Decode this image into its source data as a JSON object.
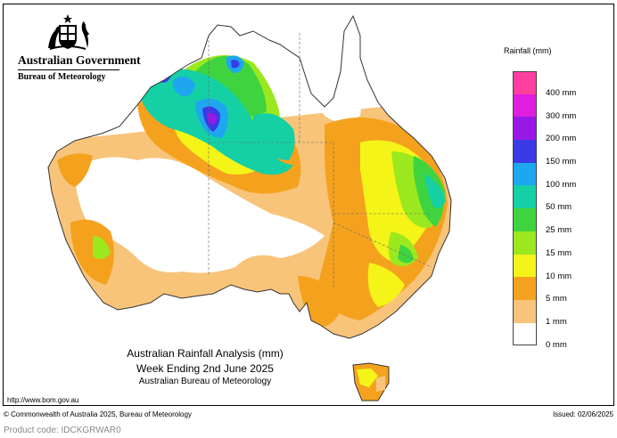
{
  "header": {
    "government": "Australian Government",
    "bureau": "Bureau of Meteorology"
  },
  "legend": {
    "title": "Rainfall (mm)",
    "bins": [
      {
        "label": "400 mm",
        "color": "#ff3fa0"
      },
      {
        "label": "300 mm",
        "color": "#e01ee0"
      },
      {
        "label": "200 mm",
        "color": "#9a18e6"
      },
      {
        "label": "150 mm",
        "color": "#3a3ae6"
      },
      {
        "label": "100 mm",
        "color": "#1ea6f0"
      },
      {
        "label": "50 mm",
        "color": "#14d0a4"
      },
      {
        "label": "25 mm",
        "color": "#3fd43f"
      },
      {
        "label": "15 mm",
        "color": "#9ce81e"
      },
      {
        "label": "10 mm",
        "color": "#f4f418"
      },
      {
        "label": "5 mm",
        "color": "#f4a21e"
      },
      {
        "label": "1 mm",
        "color": "#f8c47a"
      },
      {
        "label": "0 mm",
        "color": "#ffffff"
      }
    ]
  },
  "caption": {
    "line1": "Australian Rainfall Analysis (mm)",
    "line2": "Week Ending 2nd June 2025",
    "line3": "Australian Bureau of Meteorology"
  },
  "footer": {
    "url": "http://www.bom.gov.au",
    "copyright": "© Commonwealth of Australia 2025, Bureau of Meteorology",
    "issued": "Issued: 02/06/2025",
    "product_code": "Product code: IDCKGRWAR0"
  }
}
